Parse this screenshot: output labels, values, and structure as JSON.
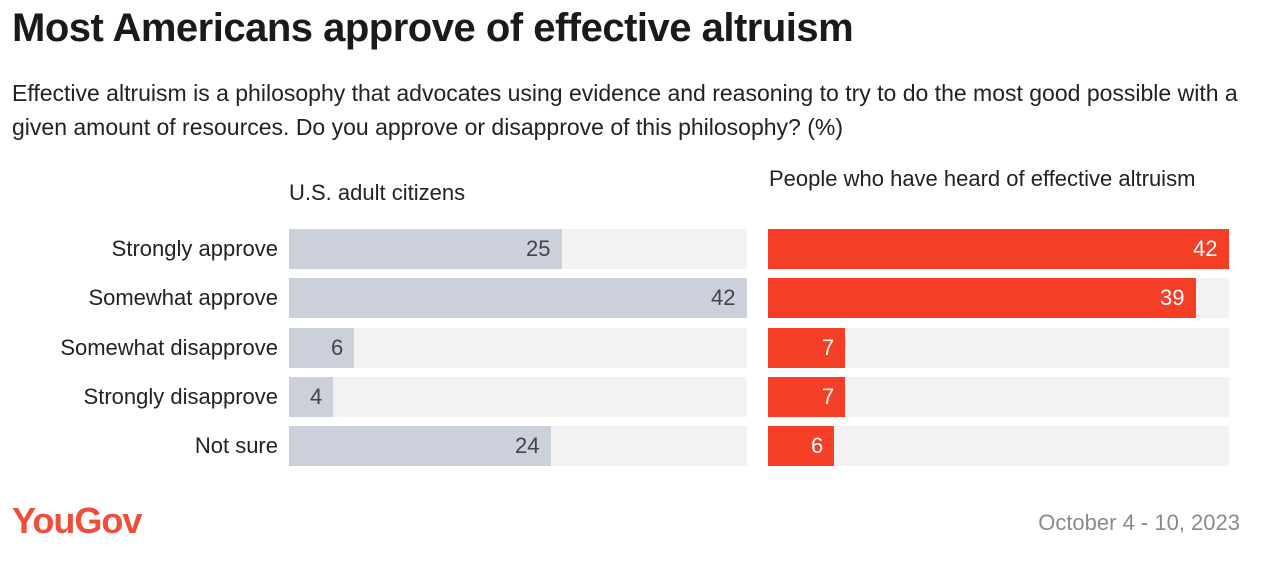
{
  "title": "Most Americans approve of effective altruism",
  "subtitle": "Effective altruism is a philosophy that advocates using evidence and reasoning to try to do the most good possible with a given amount of resources. Do you approve or disapprove of this philosophy? (%)",
  "footer": {
    "logo": "YouGov",
    "date": "October 4 - 10, 2023"
  },
  "colors": {
    "grey_bar": "#ccd0db",
    "red_bar": "#f43f26",
    "track": "#f2f2f2"
  },
  "chart_data": {
    "type": "bar",
    "orientation": "horizontal",
    "categories": [
      "Strongly approve",
      "Somewhat approve",
      "Somewhat disapprove",
      "Strongly disapprove",
      "Not sure"
    ],
    "xlim": [
      0,
      42
    ],
    "series": [
      {
        "name": "U.S. adult citizens",
        "values": [
          25,
          42,
          6,
          4,
          24
        ]
      },
      {
        "name": "People who have heard of effective altruism",
        "values": [
          42,
          39,
          7,
          7,
          6
        ]
      }
    ]
  }
}
